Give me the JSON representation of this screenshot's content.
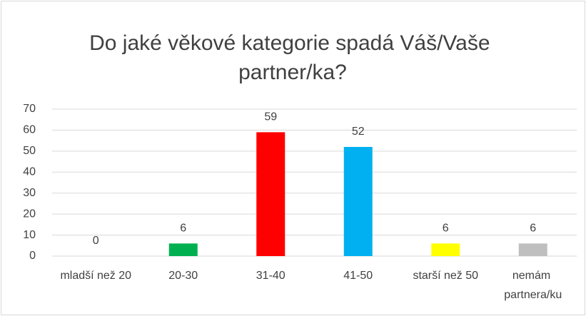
{
  "chart_data": {
    "type": "bar",
    "title": "Do jaké věkové kategorie spadá Váš/Vaše partner/ka?",
    "categories": [
      "mladší než 20",
      "20-30",
      "31-40",
      "41-50",
      "starší než 50",
      "nemám partnera/ku"
    ],
    "values": [
      0,
      6,
      59,
      52,
      6,
      6
    ],
    "colors": [
      "#4472c4",
      "#00b050",
      "#ff0000",
      "#00b0f0",
      "#ffff00",
      "#bfbfbf"
    ],
    "ylim": [
      0,
      70
    ],
    "yticks": [
      0,
      10,
      20,
      30,
      40,
      50,
      60,
      70
    ],
    "grid": true
  }
}
